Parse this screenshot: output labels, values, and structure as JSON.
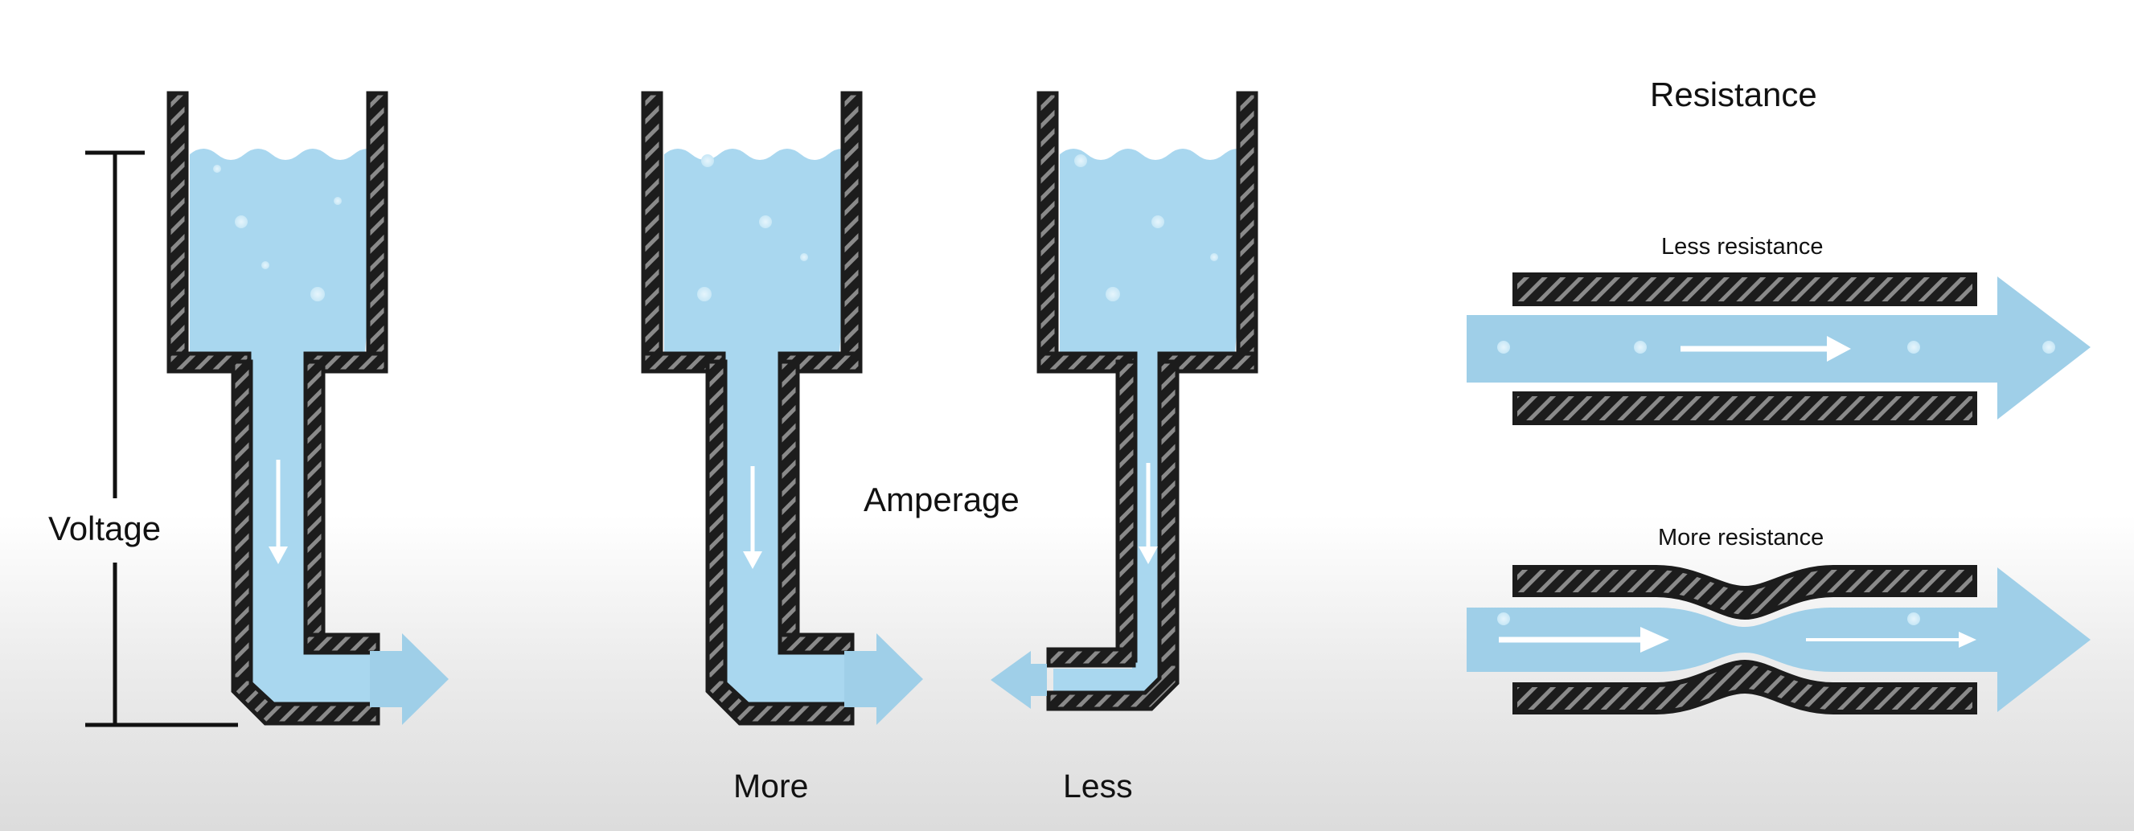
{
  "labels": {
    "voltage": "Voltage",
    "amperage": "Amperage",
    "more": "More",
    "less": "Less",
    "resistance": "Resistance",
    "less_resistance": "Less resistance",
    "more_resistance": "More resistance"
  },
  "colors": {
    "water": "#a9d7ef",
    "pipe_wall": "#1c1c1c",
    "hatch": "#8a8a8a",
    "arrow_fill": "#9fcfe8",
    "flow_arrow": "#ffffff",
    "text": "#111111"
  }
}
